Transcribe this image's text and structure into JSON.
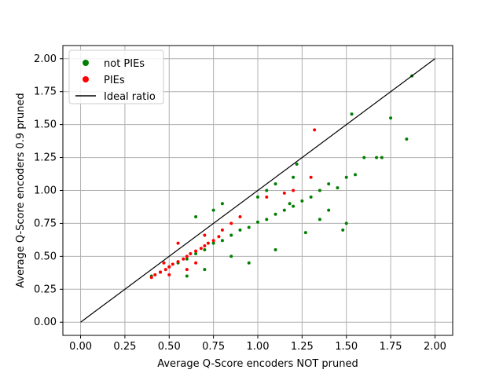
{
  "chart_data": {
    "type": "scatter",
    "title": "",
    "xlabel": "Average Q-Score encoders NOT pruned",
    "ylabel": "Average Q-Score encoders 0.9 pruned",
    "xlim": [
      -0.1,
      2.1
    ],
    "ylim": [
      -0.1,
      2.1
    ],
    "xticks": [
      "0.00",
      "0.25",
      "0.50",
      "0.75",
      "1.00",
      "1.25",
      "1.50",
      "1.75",
      "2.00"
    ],
    "yticks": [
      "0.00",
      "0.25",
      "0.50",
      "0.75",
      "1.00",
      "1.25",
      "1.50",
      "1.75",
      "2.00"
    ],
    "grid": true,
    "legend_position": "top-left",
    "series": [
      {
        "name": "not PIEs",
        "color": "#008000",
        "marker": "dot",
        "points": [
          [
            0.4,
            0.35
          ],
          [
            0.45,
            0.38
          ],
          [
            0.5,
            0.42
          ],
          [
            0.55,
            0.45
          ],
          [
            0.6,
            0.48
          ],
          [
            0.65,
            0.52
          ],
          [
            0.7,
            0.55
          ],
          [
            0.75,
            0.6
          ],
          [
            0.8,
            0.62
          ],
          [
            0.85,
            0.66
          ],
          [
            0.9,
            0.7
          ],
          [
            0.95,
            0.72
          ],
          [
            1.0,
            0.76
          ],
          [
            1.05,
            0.78
          ],
          [
            1.1,
            0.82
          ],
          [
            1.15,
            0.85
          ],
          [
            1.2,
            0.88
          ],
          [
            1.25,
            0.92
          ],
          [
            1.3,
            0.95
          ],
          [
            1.35,
            1.0
          ],
          [
            1.4,
            1.05
          ],
          [
            1.45,
            1.02
          ],
          [
            1.5,
            1.1
          ],
          [
            1.55,
            1.12
          ],
          [
            1.6,
            1.25
          ],
          [
            1.67,
            1.25
          ],
          [
            1.7,
            1.25
          ],
          [
            1.75,
            1.55
          ],
          [
            1.84,
            1.39
          ],
          [
            1.87,
            1.87
          ],
          [
            1.53,
            1.58
          ],
          [
            1.48,
            0.7
          ],
          [
            1.5,
            0.75
          ],
          [
            1.27,
            0.68
          ],
          [
            1.18,
            0.9
          ],
          [
            1.1,
            0.55
          ],
          [
            0.95,
            0.45
          ],
          [
            0.85,
            0.5
          ],
          [
            0.7,
            0.4
          ],
          [
            0.6,
            0.35
          ],
          [
            1.0,
            0.95
          ],
          [
            1.05,
            1.0
          ],
          [
            1.1,
            1.05
          ],
          [
            1.2,
            1.1
          ],
          [
            1.22,
            1.2
          ],
          [
            0.8,
            0.9
          ],
          [
            0.75,
            0.85
          ],
          [
            0.65,
            0.8
          ],
          [
            1.4,
            0.85
          ],
          [
            1.35,
            0.78
          ]
        ]
      },
      {
        "name": "PIEs",
        "color": "#ff0000",
        "marker": "dot",
        "points": [
          [
            0.4,
            0.34
          ],
          [
            0.42,
            0.36
          ],
          [
            0.45,
            0.38
          ],
          [
            0.48,
            0.4
          ],
          [
            0.5,
            0.42
          ],
          [
            0.52,
            0.44
          ],
          [
            0.55,
            0.46
          ],
          [
            0.58,
            0.48
          ],
          [
            0.6,
            0.5
          ],
          [
            0.62,
            0.52
          ],
          [
            0.65,
            0.54
          ],
          [
            0.68,
            0.56
          ],
          [
            0.7,
            0.58
          ],
          [
            0.72,
            0.6
          ],
          [
            0.75,
            0.62
          ],
          [
            0.78,
            0.65
          ],
          [
            0.8,
            0.7
          ],
          [
            0.85,
            0.75
          ],
          [
            0.9,
            0.8
          ],
          [
            1.05,
            0.95
          ],
          [
            1.15,
            0.98
          ],
          [
            1.32,
            1.46
          ],
          [
            1.3,
            1.1
          ],
          [
            1.2,
            1.0
          ],
          [
            0.55,
            0.6
          ],
          [
            0.6,
            0.4
          ],
          [
            0.65,
            0.45
          ],
          [
            0.5,
            0.36
          ],
          [
            0.47,
            0.45
          ],
          [
            0.7,
            0.66
          ]
        ]
      },
      {
        "name": "Ideal ratio",
        "color": "#000000",
        "marker": "line",
        "points": [
          [
            0.0,
            0.0
          ],
          [
            2.0,
            2.0
          ]
        ]
      }
    ]
  }
}
